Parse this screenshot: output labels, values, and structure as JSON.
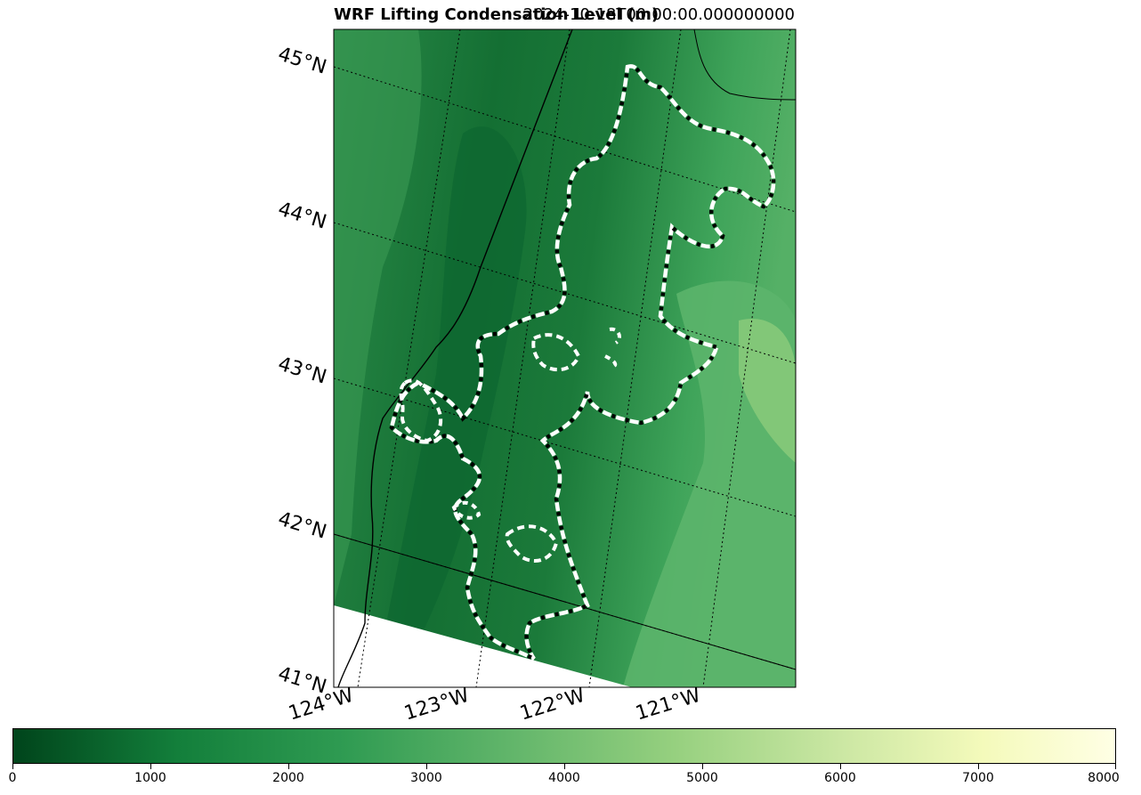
{
  "title": "WRF Lifting Condensation Level (m)",
  "time_label": "2024-10-18T00:00:00.000000000",
  "map": {
    "lat_labels": [
      "45°N",
      "44°N",
      "43°N",
      "42°N",
      "41°N"
    ],
    "lon_labels": [
      "124°W",
      "123°W",
      "122°W",
      "121°W"
    ],
    "contour_style": "white/black dashed outline"
  },
  "colorbar": {
    "colormap": "Greens_r",
    "min": 0,
    "max": 8000,
    "tick_labels": [
      "0",
      "1000",
      "2000",
      "3000",
      "4000",
      "5000",
      "6000",
      "7000",
      "8000"
    ],
    "colors": [
      "#00441b",
      "#1b7837",
      "#41ab5d",
      "#74c476",
      "#a1d99b",
      "#c7e9c0",
      "#f7fcb9",
      "#ffffe5"
    ]
  }
}
